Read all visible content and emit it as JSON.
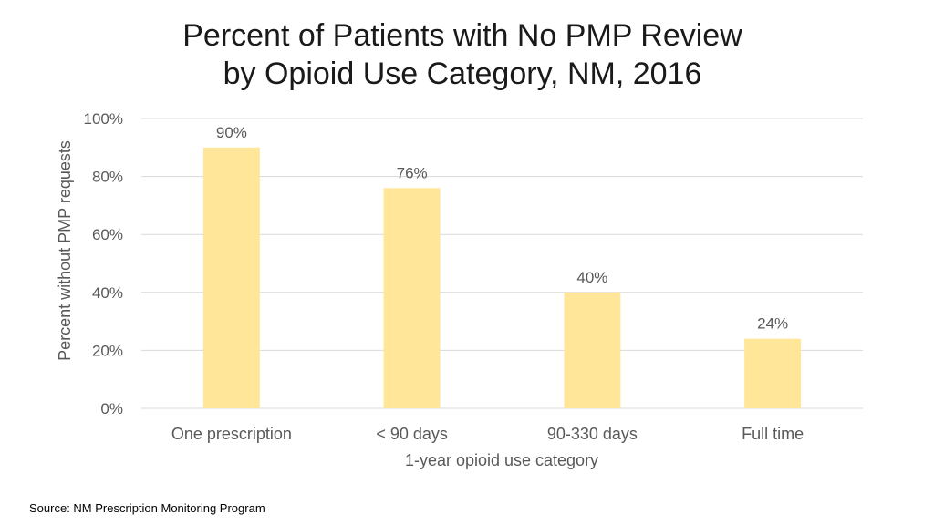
{
  "colors": {
    "bar": "#ffe699",
    "grid": "#d9d9d9",
    "text": "#595959"
  },
  "chart_data": {
    "type": "bar",
    "title": [
      "Percent of Patients with No PMP Review",
      "by Opioid Use Category, NM, 2016"
    ],
    "categories": [
      "One prescription",
      "< 90 days",
      "90-330 days",
      "Full time"
    ],
    "values": [
      90,
      76,
      40,
      24
    ],
    "data_labels": [
      "90%",
      "76%",
      "40%",
      "24%"
    ],
    "xlabel": "1-year opioid use category",
    "ylabel": "Percent without PMP requests",
    "ylim": [
      0,
      100
    ],
    "yticks": [
      0,
      20,
      40,
      60,
      80,
      100
    ],
    "ytick_labels": [
      "0%",
      "20%",
      "40%",
      "60%",
      "80%",
      "100%"
    ],
    "grid": true,
    "legend": "none"
  },
  "source": "Source:  NM Prescription Monitoring Program"
}
